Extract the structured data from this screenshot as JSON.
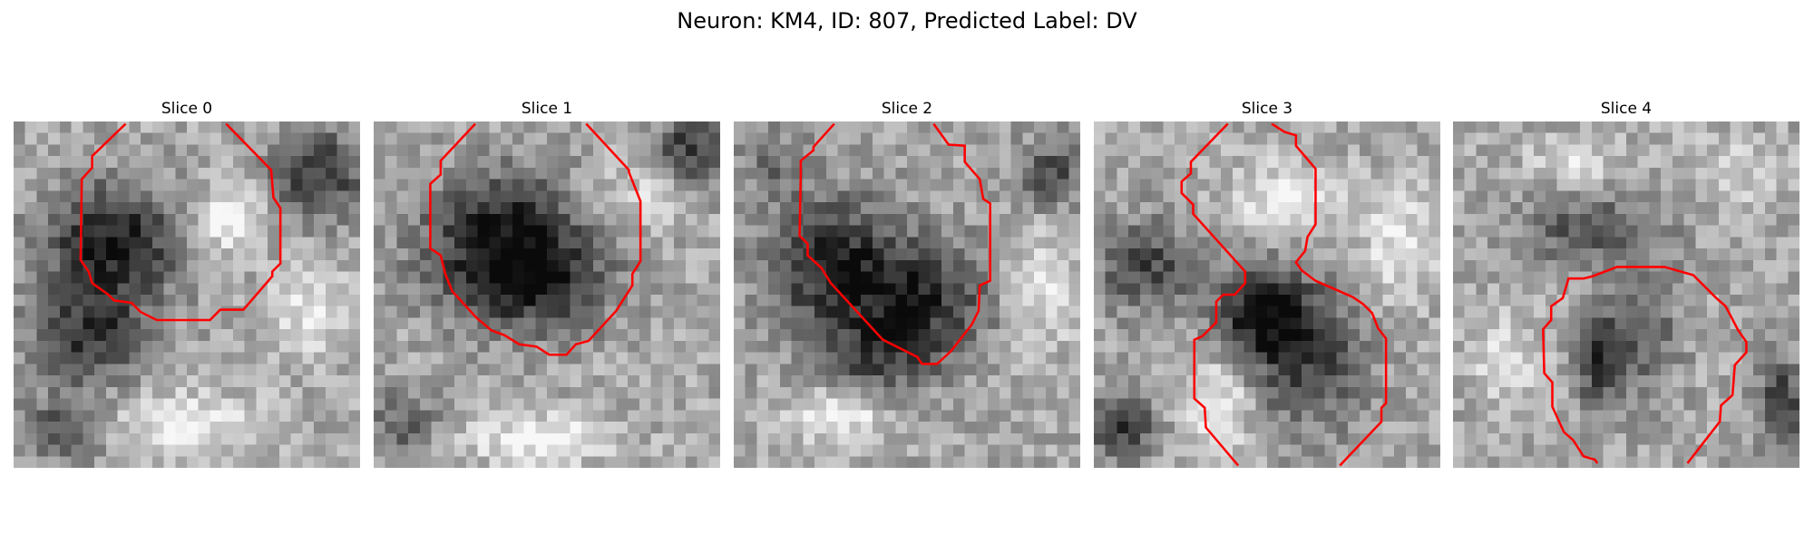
{
  "figure": {
    "title": "Neuron: KM4, ID: 807, Predicted Label: DV"
  },
  "panels": [
    {
      "title": "Slice 0"
    },
    {
      "title": "Slice 1"
    },
    {
      "title": "Slice 2"
    },
    {
      "title": "Slice 3"
    },
    {
      "title": "Slice 4"
    }
  ],
  "style": {
    "contour_color": "#ff0000",
    "colormap": "grayscale"
  }
}
